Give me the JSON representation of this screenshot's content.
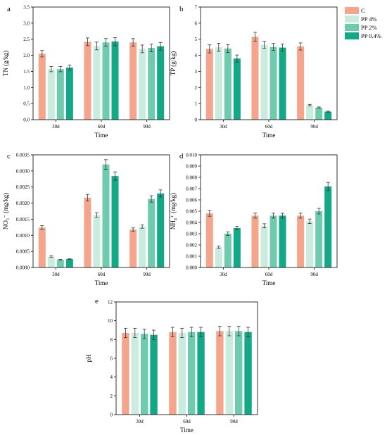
{
  "colors": {
    "C": "#f5a58c",
    "PP 4%": "#c9ecdf",
    "PP 2%": "#6fcbad",
    "PP 0.4%": "#13a886"
  },
  "legend": {
    "placement": "top-right",
    "items": [
      "C",
      "PP 4%",
      "PP 2%",
      "PP 0.4%"
    ]
  },
  "chart_data": [
    {
      "panel": "a",
      "type": "bar",
      "xlabel": "Time",
      "ylabel": "TN (g/kg)",
      "categories": [
        "30d",
        "60d",
        "90d"
      ],
      "ylim": [
        0,
        3.5
      ],
      "yticks": [
        0.0,
        0.5,
        1.0,
        1.5,
        2.0,
        2.5,
        3.0,
        3.5
      ],
      "ytick_labels": [
        "0.0",
        "0.5",
        "1.0",
        "1.5",
        "2.0",
        "2.5",
        "3.0",
        "3.5"
      ],
      "series": [
        {
          "name": "C",
          "values": [
            2.05,
            2.42,
            2.4
          ],
          "errors": [
            0.1,
            0.12,
            0.12
          ]
        },
        {
          "name": "PP 4%",
          "values": [
            1.57,
            2.29,
            2.2
          ],
          "errors": [
            0.08,
            0.12,
            0.12
          ]
        },
        {
          "name": "PP 2%",
          "values": [
            1.57,
            2.4,
            2.23
          ],
          "errors": [
            0.08,
            0.12,
            0.12
          ]
        },
        {
          "name": "PP 0.4%",
          "values": [
            1.62,
            2.43,
            2.28
          ],
          "errors": [
            0.08,
            0.12,
            0.12
          ]
        }
      ]
    },
    {
      "panel": "b",
      "type": "bar",
      "xlabel": "Time",
      "ylabel": "TP (g/kg)",
      "categories": [
        "30d",
        "60d",
        "90d"
      ],
      "ylim": [
        0,
        7
      ],
      "yticks": [
        0,
        1,
        2,
        3,
        4,
        5,
        6,
        7
      ],
      "ytick_labels": [
        "0",
        "1",
        "2",
        "3",
        "4",
        "5",
        "6",
        "7"
      ],
      "series": [
        {
          "name": "C",
          "values": [
            4.4,
            5.15,
            4.55
          ],
          "errors": [
            0.25,
            0.28,
            0.22
          ]
        },
        {
          "name": "PP 4%",
          "values": [
            4.5,
            4.65,
            0.9
          ],
          "errors": [
            0.25,
            0.22,
            0.05
          ]
        },
        {
          "name": "PP 2%",
          "values": [
            4.42,
            4.52,
            0.75
          ],
          "errors": [
            0.25,
            0.22,
            0.04
          ]
        },
        {
          "name": "PP 0.4%",
          "values": [
            3.8,
            4.48,
            0.5
          ],
          "errors": [
            0.22,
            0.22,
            0.03
          ]
        }
      ]
    },
    {
      "panel": "c",
      "type": "bar",
      "xlabel": "Time",
      "ylabel": "NO₃⁻ (mg/kg)",
      "categories": [
        "30d",
        "60d",
        "90d"
      ],
      "ylim": [
        0,
        0.0035
      ],
      "yticks": [
        0,
        0.0005,
        0.001,
        0.0015,
        0.002,
        0.0025,
        0.003,
        0.0035
      ],
      "ytick_labels": [
        "0.0000",
        "0.0005",
        "0.0010",
        "0.0015",
        "0.0020",
        "0.0025",
        "0.0030",
        "0.0035"
      ],
      "series": [
        {
          "name": "C",
          "values": [
            0.00124,
            0.00217,
            0.00118
          ],
          "errors": [
            6e-05,
            0.0001,
            5e-05
          ]
        },
        {
          "name": "PP 4%",
          "values": [
            0.00034,
            0.00163,
            0.00127
          ],
          "errors": [
            2e-05,
            7e-05,
            5e-05
          ]
        },
        {
          "name": "PP 2%",
          "values": [
            0.00024,
            0.0032,
            0.00213
          ],
          "errors": [
            1e-05,
            0.00015,
            0.0001
          ]
        },
        {
          "name": "PP 0.4%",
          "values": [
            0.00026,
            0.00284,
            0.0023
          ],
          "errors": [
            1e-05,
            0.00013,
            0.00011
          ]
        }
      ]
    },
    {
      "panel": "d",
      "type": "bar",
      "xlabel": "Time",
      "ylabel": "NH₄⁺ (mg/kg)",
      "categories": [
        "30d",
        "60d",
        "90d"
      ],
      "ylim": [
        0,
        0.01
      ],
      "yticks": [
        0,
        0.001,
        0.002,
        0.003,
        0.004,
        0.005,
        0.006,
        0.007,
        0.008,
        0.009,
        0.01
      ],
      "ytick_labels": [
        "0.000",
        "0.001",
        "0.002",
        "0.003",
        "0.004",
        "0.005",
        "0.006",
        "0.007",
        "0.008",
        "0.009",
        "0.010"
      ],
      "series": [
        {
          "name": "C",
          "values": [
            0.0048,
            0.0046,
            0.0046
          ],
          "errors": [
            0.00025,
            0.00022,
            0.00022
          ]
        },
        {
          "name": "PP 4%",
          "values": [
            0.0018,
            0.0037,
            0.0041
          ],
          "errors": [
            0.0001,
            0.00018,
            0.0002
          ]
        },
        {
          "name": "PP 2%",
          "values": [
            0.003,
            0.0046,
            0.005
          ],
          "errors": [
            0.00015,
            0.00022,
            0.00025
          ]
        },
        {
          "name": "PP 0.4%",
          "values": [
            0.0035,
            0.0046,
            0.0072
          ],
          "errors": [
            0.00015,
            0.00022,
            0.00035
          ]
        }
      ]
    },
    {
      "panel": "e",
      "type": "bar",
      "xlabel": "Time",
      "ylabel": "pH",
      "categories": [
        "30d",
        "60d",
        "90d"
      ],
      "ylim": [
        0,
        12
      ],
      "yticks": [
        0,
        2,
        4,
        6,
        8,
        10,
        12
      ],
      "ytick_labels": [
        "0",
        "2",
        "4",
        "6",
        "8",
        "10",
        "12"
      ],
      "series": [
        {
          "name": "C",
          "values": [
            8.7,
            8.8,
            8.9
          ],
          "errors": [
            0.5,
            0.5,
            0.5
          ]
        },
        {
          "name": "PP 4%",
          "values": [
            8.7,
            8.7,
            8.9
          ],
          "errors": [
            0.5,
            0.5,
            0.5
          ]
        },
        {
          "name": "PP 2%",
          "values": [
            8.6,
            8.8,
            8.9
          ],
          "errors": [
            0.5,
            0.5,
            0.5
          ]
        },
        {
          "name": "PP 0.4%",
          "values": [
            8.5,
            8.8,
            8.8
          ],
          "errors": [
            0.5,
            0.5,
            0.5
          ]
        }
      ]
    }
  ]
}
